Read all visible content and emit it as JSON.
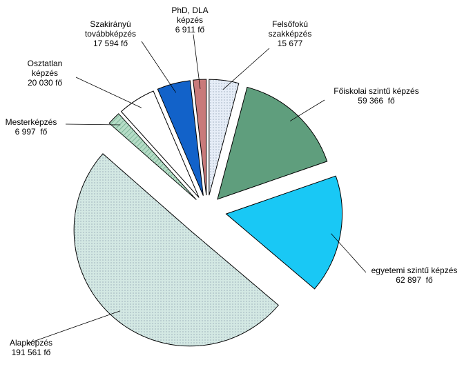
{
  "chart_data": {
    "type": "pie",
    "categories": [
      "Felsőfokú szakképzés",
      "Főiskolai szintű képzés",
      "egyetemi szintű képzés",
      "Alapképzés",
      "Mesterképzés",
      "Osztatlan képzés",
      "Szakirányú továbbképzés",
      "PhD, DLA képzés"
    ],
    "values": [
      15677,
      59366,
      62897,
      191561,
      6997,
      20030,
      17594,
      6911
    ],
    "value_labels": [
      "15 677",
      "59 366  fő",
      "62 897  fő",
      "191 561 fő",
      "6 997  fő",
      "20 030 fő",
      "17 594 fő",
      "6 911 fő"
    ],
    "colors": [
      "#e6edf7",
      "#5f9e7d",
      "#19c8f5",
      "#d3e8e3",
      "#b5dcc6",
      "#ffffff",
      "#1262c9",
      "#c97a7a"
    ]
  }
}
